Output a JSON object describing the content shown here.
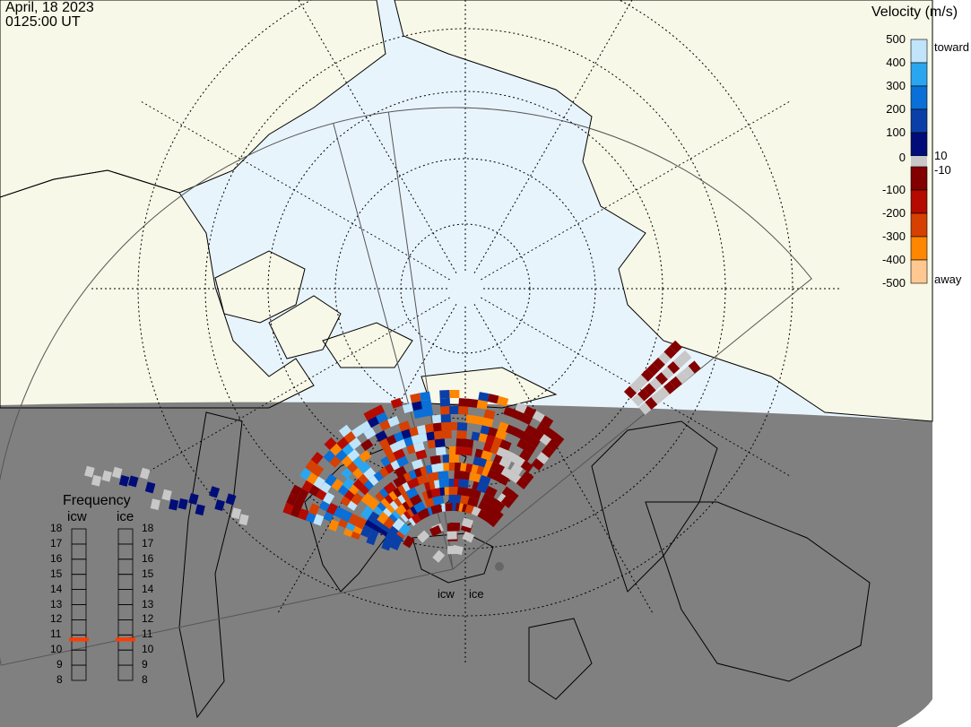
{
  "header": {
    "date": "April, 18 2023",
    "time": "0125:00 UT"
  },
  "velocity_scale": {
    "title": "Velocity (m/s)",
    "ticks": [
      "500",
      "400",
      "300",
      "200",
      "100",
      "0",
      "-100",
      "-200",
      "-300",
      "-400",
      "-500"
    ],
    "toward_label": "toward",
    "away_label": "away",
    "plus_label": "10",
    "minus_label": "-10",
    "colors_toward": [
      "#c0e4fa",
      "#2aa6f0",
      "#0a6fd6",
      "#0a3fa8",
      "#000d78"
    ],
    "colors_away": [
      "#820000",
      "#b40a00",
      "#d64000",
      "#ff8600",
      "#ffc890"
    ],
    "ground_scatter_color": "#c8c8c8"
  },
  "frequency_panel": {
    "title": "Frequency",
    "radars": [
      {
        "name": "icw",
        "frequency_mhz": 10.7
      },
      {
        "name": "ice",
        "frequency_mhz": 10.7
      }
    ],
    "ticks": [
      "18",
      "17",
      "16",
      "15",
      "14",
      "13",
      "12",
      "11",
      "10",
      "9",
      "8"
    ],
    "marker_color": "#ff3c00"
  },
  "radar_labels": [
    "icw",
    "ice"
  ],
  "map_colors": {
    "land": "#f8f8e8",
    "ocean": "#e8f4fc",
    "night": "#808080"
  }
}
